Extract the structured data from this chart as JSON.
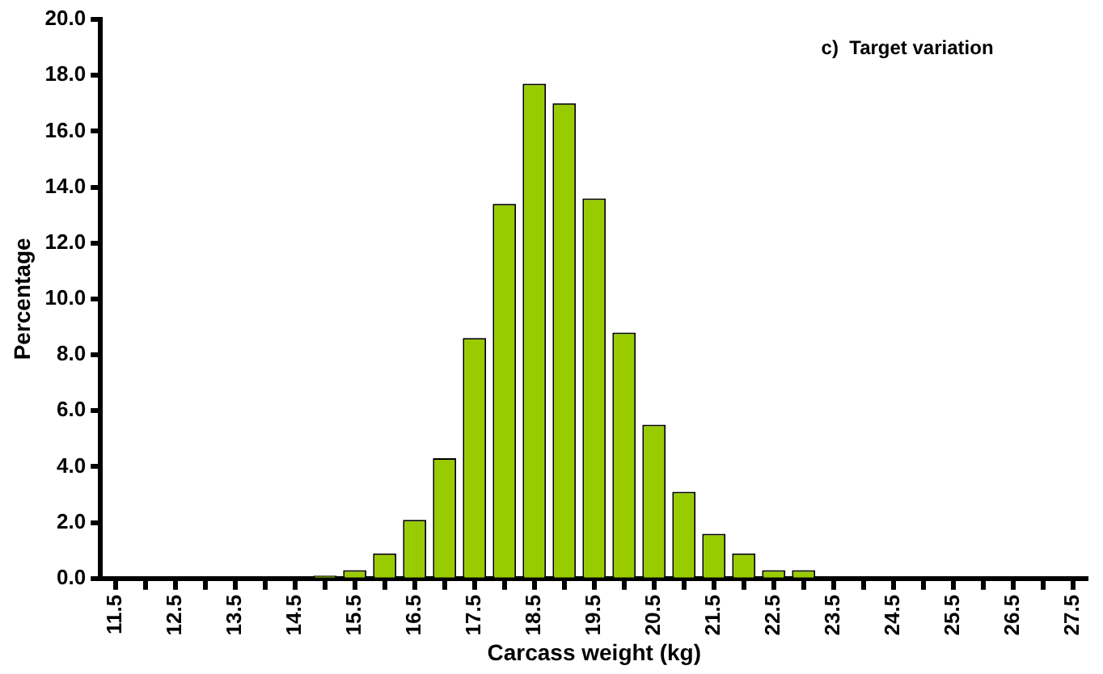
{
  "chart_data": {
    "type": "bar",
    "xlabel": "Carcass weight (kg)",
    "ylabel": "Percentage",
    "annotations": [
      "c)  Target variation"
    ],
    "categories": [
      "11.5",
      null,
      "12.5",
      null,
      "13.5",
      null,
      "14.5",
      null,
      "15.5",
      null,
      "16.5",
      null,
      "17.5",
      null,
      "18.5",
      null,
      "19.5",
      null,
      "20.5",
      null,
      "21.5",
      null,
      "22.5",
      null,
      "23.5",
      null,
      "24.5",
      null,
      "25.5",
      null,
      "26.5",
      null,
      "27.5"
    ],
    "values": [
      0,
      0,
      0,
      0,
      0,
      0,
      0,
      0.1,
      0.3,
      0.9,
      2.1,
      4.3,
      8.6,
      13.4,
      17.7,
      17.0,
      13.6,
      8.8,
      5.5,
      3.1,
      1.6,
      0.9,
      0.3,
      0.3,
      0,
      0,
      0,
      0,
      0,
      0,
      0,
      0,
      0
    ],
    "color": "#99cc00",
    "ylim": [
      0,
      20
    ],
    "yticks": [
      {
        "value": 0,
        "label": "0.0"
      },
      {
        "value": 2,
        "label": "2.0"
      },
      {
        "value": 4,
        "label": "4.0"
      },
      {
        "value": 6,
        "label": "6.0"
      },
      {
        "value": 8,
        "label": "8.0"
      },
      {
        "value": 10,
        "label": "10.0"
      },
      {
        "value": 12,
        "label": "12.0"
      },
      {
        "value": 14,
        "label": "14.0"
      },
      {
        "value": 16,
        "label": "16.0"
      },
      {
        "value": 18,
        "label": "18.0"
      },
      {
        "value": 20,
        "label": "20.0"
      }
    ],
    "grid": false,
    "legend": false
  }
}
